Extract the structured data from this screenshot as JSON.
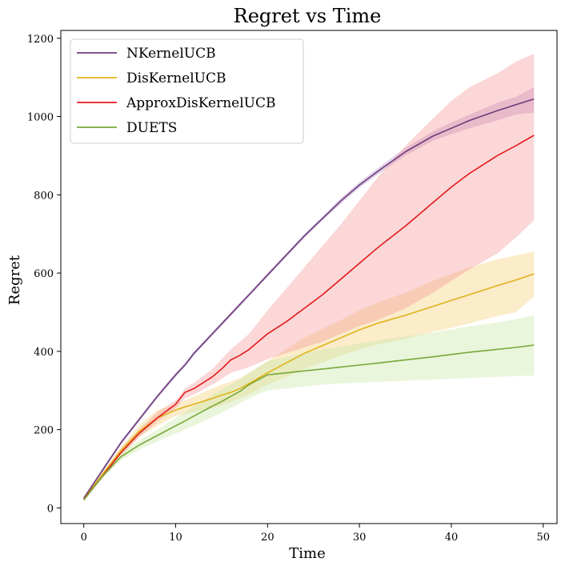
{
  "chart_data": {
    "type": "line",
    "title": "Regret vs Time",
    "xlabel": "Time",
    "ylabel": "Regret",
    "xlim": [
      -2.5,
      51.5
    ],
    "ylim": [
      -40,
      1220
    ],
    "xticks": [
      0,
      10,
      20,
      30,
      40,
      50
    ],
    "yticks": [
      0,
      200,
      400,
      600,
      800,
      1000,
      1200
    ],
    "grid": false,
    "legend_position": "top-left",
    "x": [
      0,
      2,
      4,
      6,
      8,
      10,
      11,
      12,
      14,
      15,
      16,
      17,
      18,
      20,
      22,
      24,
      26,
      28,
      30,
      32,
      35,
      38,
      40,
      42,
      45,
      47,
      49
    ],
    "series": [
      {
        "name": "NKernelUCB",
        "color": "#6b3d7a",
        "band_color": "#b388c9",
        "values": [
          25,
          95,
          165,
          225,
          285,
          340,
          365,
          395,
          445,
          470,
          495,
          520,
          545,
          595,
          645,
          695,
          740,
          785,
          825,
          860,
          910,
          950,
          970,
          990,
          1015,
          1030,
          1045
        ],
        "lower": [
          22,
          90,
          160,
          220,
          280,
          335,
          360,
          390,
          440,
          465,
          490,
          515,
          540,
          590,
          640,
          690,
          735,
          778,
          818,
          852,
          900,
          938,
          955,
          970,
          990,
          1005,
          1010
        ],
        "upper": [
          28,
          100,
          170,
          230,
          290,
          345,
          370,
          400,
          450,
          475,
          500,
          525,
          550,
          600,
          650,
          700,
          745,
          792,
          832,
          868,
          920,
          962,
          985,
          1005,
          1035,
          1050,
          1075
        ]
      },
      {
        "name": "DisKernelUCB",
        "color": "#e0b318",
        "band_color": "#f5cf7a",
        "values": [
          22,
          85,
          145,
          195,
          230,
          250,
          258,
          265,
          280,
          288,
          295,
          305,
          318,
          345,
          370,
          395,
          415,
          435,
          455,
          472,
          492,
          515,
          530,
          545,
          568,
          582,
          598
        ],
        "lower": [
          20,
          80,
          135,
          180,
          210,
          235,
          240,
          245,
          255,
          262,
          270,
          280,
          290,
          315,
          335,
          355,
          372,
          390,
          405,
          418,
          432,
          450,
          460,
          472,
          490,
          500,
          540
        ],
        "upper": [
          24,
          90,
          155,
          210,
          250,
          265,
          275,
          285,
          305,
          315,
          322,
          332,
          345,
          375,
          405,
          435,
          458,
          480,
          505,
          525,
          550,
          580,
          598,
          615,
          635,
          645,
          655
        ]
      },
      {
        "name": "ApproxDisKernelUCB",
        "color": "#e31a1c",
        "band_color": "#f69a9a",
        "values": [
          22,
          80,
          140,
          190,
          230,
          265,
          295,
          305,
          335,
          355,
          378,
          390,
          405,
          445,
          475,
          510,
          545,
          585,
          625,
          665,
          720,
          780,
          820,
          855,
          900,
          925,
          952
        ],
        "lower": [
          20,
          75,
          130,
          180,
          220,
          255,
          280,
          290,
          315,
          330,
          345,
          352,
          360,
          380,
          395,
          410,
          425,
          445,
          465,
          480,
          510,
          550,
          580,
          610,
          650,
          690,
          735
        ],
        "upper": [
          24,
          85,
          150,
          200,
          245,
          275,
          305,
          320,
          355,
          380,
          405,
          425,
          445,
          505,
          560,
          615,
          670,
          725,
          785,
          845,
          925,
          995,
          1040,
          1075,
          1110,
          1140,
          1160
        ]
      },
      {
        "name": "DUETS",
        "color": "#7aa83a",
        "band_color": "#c9e8a8",
        "values": [
          20,
          80,
          130,
          160,
          185,
          210,
          222,
          235,
          260,
          272,
          285,
          298,
          315,
          340,
          345,
          350,
          355,
          360,
          365,
          370,
          378,
          386,
          392,
          398,
          405,
          410,
          416
        ],
        "lower": [
          18,
          75,
          120,
          148,
          170,
          190,
          200,
          210,
          232,
          243,
          255,
          268,
          280,
          300,
          305,
          310,
          315,
          318,
          320,
          322,
          325,
          328,
          330,
          332,
          335,
          337,
          338
        ],
        "upper": [
          22,
          85,
          140,
          172,
          200,
          230,
          244,
          260,
          288,
          302,
          315,
          328,
          345,
          375,
          385,
          395,
          405,
          412,
          420,
          428,
          438,
          448,
          456,
          464,
          474,
          482,
          492
        ]
      }
    ]
  }
}
